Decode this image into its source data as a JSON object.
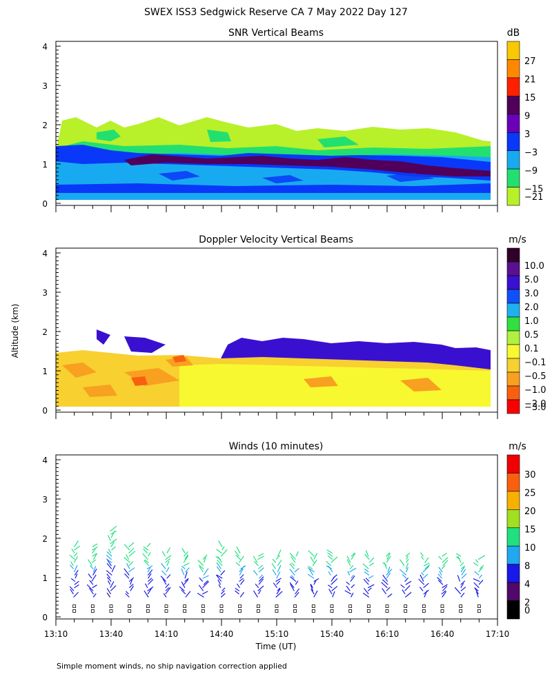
{
  "title": "SWEX ISS3 Sedgwick Reserve CA   7 May 2022 Day 127",
  "ylabel": "Altitude (km)",
  "xlabel": "Time (UT)",
  "footnote": "Simple moment winds, no ship navigation correction applied",
  "x_ticks": [
    "13:10",
    "13:40",
    "14:10",
    "14:40",
    "15:10",
    "15:40",
    "16:10",
    "16:40",
    "17:10"
  ],
  "y_ticks": [
    "0",
    "1",
    "2",
    "3",
    "4"
  ],
  "panels": [
    {
      "title": "SNR Vertical Beams",
      "unit": "dB",
      "cbar_labels": [
        "27",
        "21",
        "15",
        "9",
        "3",
        "−3",
        "−9",
        "−15",
        "−21"
      ],
      "cbar_colors": [
        "#f8c800",
        "#ff8800",
        "#ff2000",
        "#50005a",
        "#6a00b8",
        "#0a38f8",
        "#18aaf0",
        "#22e070",
        "#b8f02a"
      ]
    },
    {
      "title": "Doppler Velocity Vertical Beams",
      "unit": "m/s",
      "cbar_labels": [
        "10.0",
        "5.0",
        "3.0",
        "2.0",
        "1.0",
        "0.5",
        "0.1",
        "−0.1",
        "−0.5",
        "−1.0",
        "−2.0",
        "−3.0"
      ],
      "cbar_colors": [
        "#30002a",
        "#5a1090",
        "#3a10d0",
        "#1050f8",
        "#20b0f0",
        "#30e040",
        "#b0f040",
        "#f8f830",
        "#f8d030",
        "#f8a020",
        "#f86010",
        "#f80000"
      ]
    },
    {
      "title": "Winds (10 minutes)",
      "unit": "m/s",
      "cbar_labels": [
        "30",
        "25",
        "20",
        "15",
        "10",
        "8",
        "4",
        "2",
        "0"
      ],
      "cbar_colors": [
        "#f00000",
        "#f86010",
        "#f8b000",
        "#a0e020",
        "#20e080",
        "#20a8f0",
        "#1818e8",
        "#50086a",
        "#000000"
      ]
    }
  ],
  "chart_data": [
    {
      "type": "heatmap",
      "title": "SNR Vertical Beams",
      "units": "dB",
      "x_range": [
        "13:10",
        "17:10"
      ],
      "y_range_km": [
        0,
        4
      ],
      "levels": [
        -21,
        -15,
        -9,
        -3,
        3,
        9,
        15,
        21,
        27
      ],
      "layers": [
        {
          "from_km": 0.1,
          "to_km": 0.9,
          "dominant_value_dB": -12
        },
        {
          "from_km": 0.9,
          "to_km": 1.3,
          "dominant_value_dB": 0,
          "note": "higher SNR band ~1.0 km after 15:40"
        },
        {
          "from_km": 1.3,
          "to_km": 2.0,
          "dominant_value_dB": -18
        }
      ]
    },
    {
      "type": "heatmap",
      "title": "Doppler Velocity Vertical Beams",
      "units": "m/s",
      "x_range": [
        "13:10",
        "17:10"
      ],
      "y_range_km": [
        0,
        4
      ],
      "levels": [
        -3.0,
        -2.0,
        -1.0,
        -0.5,
        -0.1,
        0.1,
        0.5,
        1.0,
        2.0,
        3.0,
        5.0,
        10.0
      ],
      "layers": [
        {
          "from_km": 0.1,
          "to_km": 1.5,
          "dominant_value_ms": -0.3
        },
        {
          "from_km": 1.2,
          "to_km": 1.9,
          "dominant_value_ms": 4.0,
          "time_range": [
            "14:40",
            "17:10"
          ]
        }
      ]
    },
    {
      "type": "scatter",
      "title": "Winds (10 minutes)",
      "units": "m/s",
      "x_range": [
        "13:10",
        "17:10"
      ],
      "y_range_km": [
        0,
        4
      ],
      "profile_times": [
        "13:20",
        "13:30",
        "13:40",
        "13:50",
        "14:00",
        "14:10",
        "14:20",
        "14:30",
        "14:40",
        "14:50",
        "15:00",
        "15:10",
        "15:20",
        "15:30",
        "15:40",
        "15:50",
        "16:00",
        "16:10",
        "16:20",
        "16:30",
        "16:40",
        "16:50",
        "17:00"
      ],
      "profile_top_km": [
        1.8,
        1.8,
        2.2,
        1.8,
        1.8,
        1.7,
        1.7,
        1.5,
        1.8,
        1.7,
        1.6,
        1.6,
        1.6,
        1.6,
        1.7,
        1.6,
        1.6,
        1.6,
        1.6,
        1.6,
        1.6,
        1.6,
        1.5
      ],
      "speed_range_ms": [
        2,
        10
      ]
    }
  ]
}
